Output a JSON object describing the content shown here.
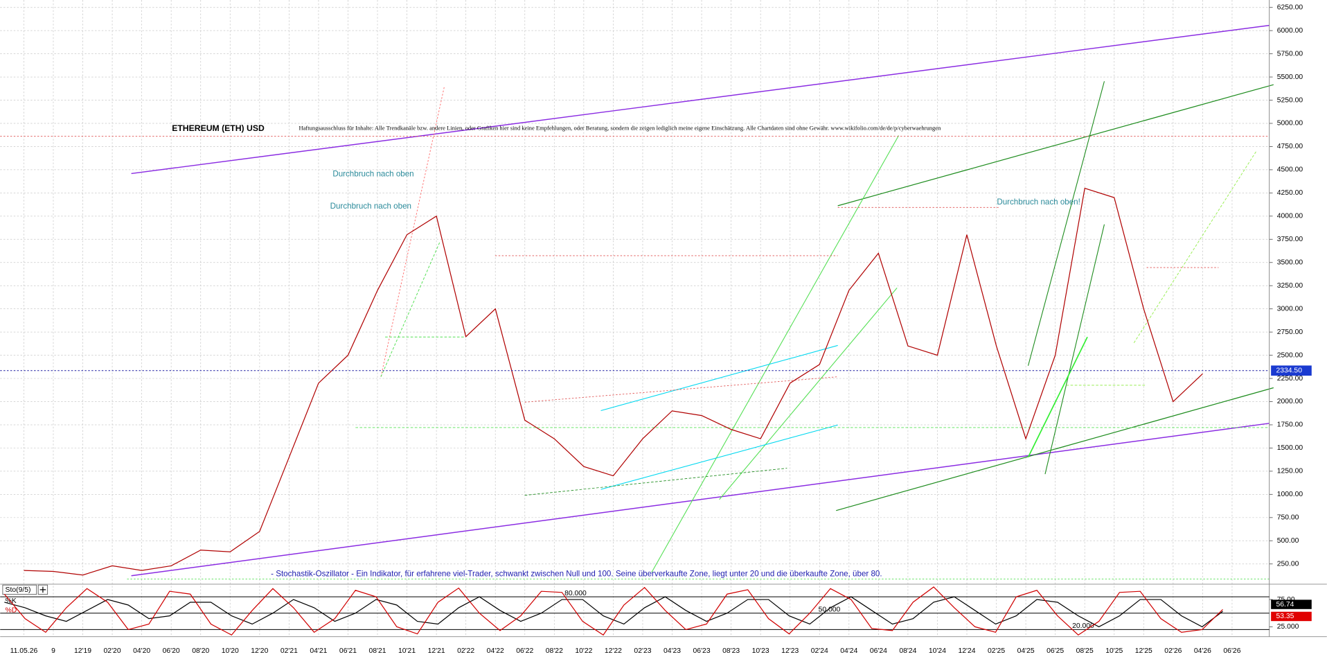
{
  "chart_data": [
    {
      "type": "line",
      "title": "ETHEREUM (ETH) USD",
      "disclaimer": "Haftungsausschluss für Inhalte: Alle Trendkanäle bzw. andere Linien, oder Grafiken hier sind keine Empfehlungen, oder Beratung, sondern die zeigen lediglich meine eigene Einschätzung. Alle Chartdaten sind ohne Gewähr.  www.wikifolio.com/de/de/p/cyberwaehrungen",
      "annotations": [
        "Durchbruch nach oben",
        "Durchbruch nach oben",
        "Durchbruch nach oben!",
        "- Stochastik-Oszillator - Ein Indikator, für erfahrene viel-Trader, schwankt zwischen Null und 100. Seine überverkaufte Zone, liegt unter 20 und die überkaufte Zone, über 80."
      ],
      "categories": [
        "11.05.26",
        "9",
        "12'19",
        "02'20",
        "04'20",
        "06'20",
        "08'20",
        "10'20",
        "12'20",
        "02'21",
        "04'21",
        "06'21",
        "08'21",
        "10'21",
        "12'21",
        "02'22",
        "04'22",
        "06'22",
        "08'22",
        "10'22",
        "12'22",
        "02'23",
        "04'23",
        "06'23",
        "08'23",
        "10'23",
        "12'23",
        "02'24",
        "04'24",
        "06'24",
        "08'24",
        "10'24",
        "12'24",
        "02'25",
        "04'25",
        "06'25",
        "08'25",
        "10'25",
        "12'25",
        "02'26",
        "04'26",
        "06'26"
      ],
      "series": [
        {
          "name": "ETH",
          "color": "#b00000",
          "values": [
            180,
            170,
            130,
            230,
            180,
            230,
            400,
            380,
            600,
            1400,
            2200,
            2500,
            3200,
            3800,
            4000,
            2700,
            3000,
            1800,
            1600,
            1300,
            1200,
            1600,
            1900,
            1850,
            1700,
            1600,
            2200,
            2400,
            3200,
            3600,
            2600,
            2500,
            3800,
            2600,
            1600,
            2500,
            4300,
            4200,
            3000,
            2000,
            2300,
            null
          ]
        }
      ],
      "last_value": 2334.5,
      "last_label": "2334.50",
      "ylim": [
        50,
        6330
      ],
      "yticks": [
        {
          "value": 250,
          "label": "250.00"
        },
        {
          "value": 500,
          "label": "500.00"
        },
        {
          "value": 750,
          "label": "750.00"
        },
        {
          "value": 1000,
          "label": "1000.00"
        },
        {
          "value": 1250,
          "label": "1250.00"
        },
        {
          "value": 1500,
          "label": "1500.00"
        },
        {
          "value": 1750,
          "label": "1750.00"
        },
        {
          "value": 2000,
          "label": "2000.00"
        },
        {
          "value": 2250,
          "label": "2250.00"
        },
        {
          "value": 2500,
          "label": "2500.00"
        },
        {
          "value": 2750,
          "label": "2750.00"
        },
        {
          "value": 3000,
          "label": "3000.00"
        },
        {
          "value": 3250,
          "label": "3250.00"
        },
        {
          "value": 3500,
          "label": "3500.00"
        },
        {
          "value": 3750,
          "label": "3750.00"
        },
        {
          "value": 4000,
          "label": "4000.00"
        },
        {
          "value": 4250,
          "label": "4250.00"
        },
        {
          "value": 4500,
          "label": "4500.00"
        },
        {
          "value": 4750,
          "label": "4750.00"
        },
        {
          "value": 5000,
          "label": "5000.00"
        },
        {
          "value": 5250,
          "label": "5250.00"
        },
        {
          "value": 5500,
          "label": "5500.00"
        },
        {
          "value": 5750,
          "label": "5750.00"
        },
        {
          "value": 6000,
          "label": "6000.00"
        },
        {
          "value": 6250,
          "label": "6250.00"
        }
      ],
      "grid": true
    },
    {
      "type": "line",
      "title": "Sto(9/5)",
      "series": [
        {
          "name": "%K",
          "color": "#d00000",
          "value_label": "56.74",
          "values": [
            85,
            40,
            15,
            60,
            95,
            70,
            20,
            30,
            90,
            85,
            30,
            10,
            55,
            95,
            60,
            15,
            40,
            92,
            80,
            25,
            12,
            70,
            96,
            50,
            18,
            45,
            90,
            88,
            35,
            10,
            65,
            97,
            55,
            20,
            30,
            85,
            93,
            40,
            12,
            50,
            95,
            75,
            22,
            18,
            70,
            98,
            60,
            25,
            15,
            80,
            92,
            45,
            10,
            35,
            88,
            90,
            40,
            15,
            20,
            56.74
          ]
        },
        {
          "name": "%D",
          "color": "#000000",
          "value_label": "53.35",
          "values": [
            70,
            60,
            45,
            35,
            55,
            75,
            65,
            40,
            45,
            70,
            70,
            45,
            30,
            50,
            75,
            60,
            35,
            50,
            75,
            65,
            35,
            30,
            60,
            80,
            55,
            35,
            50,
            75,
            75,
            45,
            30,
            60,
            80,
            55,
            35,
            50,
            75,
            75,
            45,
            30,
            60,
            80,
            55,
            30,
            40,
            70,
            80,
            55,
            30,
            45,
            75,
            70,
            45,
            25,
            45,
            75,
            75,
            45,
            25,
            53.35
          ]
        }
      ],
      "levels": [
        {
          "value": 80,
          "label": "80.000"
        },
        {
          "value": 50,
          "label": "50.000"
        },
        {
          "value": 20,
          "label": "20.000"
        }
      ],
      "ylim": [
        10,
        100
      ],
      "yticks": [
        {
          "value": 75,
          "label": "75.00"
        },
        {
          "value": 25,
          "label": "25.000"
        }
      ]
    }
  ]
}
